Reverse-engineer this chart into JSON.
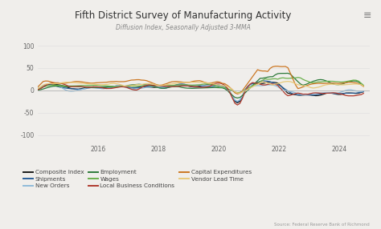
{
  "title": "Fifth District Survey of Manufacturing Activity",
  "subtitle": "Diffusion Index, Seasonally Adjusted 3-MMA",
  "source": "Source: Federal Reserve Bank of Richmond",
  "ylim": [
    -115,
    115
  ],
  "yticks": [
    -100,
    -50,
    0,
    50,
    100
  ],
  "ytick_labels": [
    "-100",
    "-50",
    "0",
    "50",
    "100"
  ],
  "xlim": [
    2014.0,
    2025.0
  ],
  "xtick_vals": [
    2016,
    2018,
    2020,
    2022,
    2024
  ],
  "background_color": "#f0eeeb",
  "plot_bg_color": "#f0eeeb",
  "series_colors": {
    "Composite Index": "#1a1a1a",
    "Shipments": "#2a6099",
    "New Orders": "#8fbbd9",
    "Employment": "#2d7a3a",
    "Wages": "#6ab04c",
    "Local Business Conditions": "#b03a2e",
    "Capital Expenditures": "#cc7722",
    "Vendor Lead Time": "#e8c97a"
  },
  "legend_cols_order": [
    [
      "Composite Index",
      "Employment",
      "Capital Expenditures"
    ],
    [
      "Shipments",
      "Wages",
      "Vendor Lead Time"
    ],
    [
      "New Orders",
      "Local Business Conditions"
    ]
  ]
}
